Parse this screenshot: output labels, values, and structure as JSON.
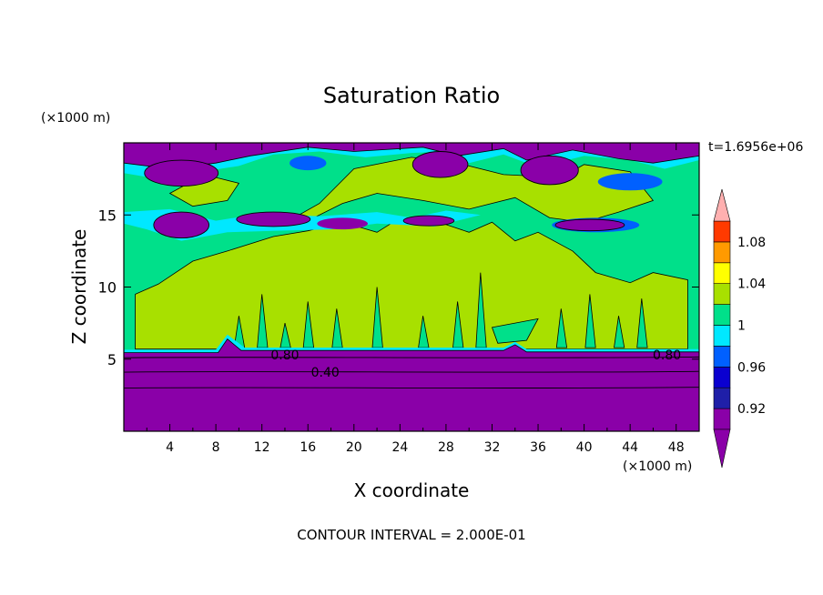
{
  "chart_data": {
    "type": "heatmap",
    "title": "Saturation Ratio",
    "xlabel": "X coordinate",
    "ylabel": "Z coordinate",
    "x_unit": "(×1000 m)",
    "y_unit": "(×1000 m)",
    "time_label": "t=1.6956e+06",
    "footer": "CONTOUR INTERVAL = 2.000E-01",
    "xlim": [
      0,
      50
    ],
    "ylim": [
      0,
      20
    ],
    "x_ticks": [
      "4",
      "8",
      "12",
      "16",
      "20",
      "24",
      "28",
      "32",
      "36",
      "40",
      "44",
      "48"
    ],
    "y_ticks": [
      "5",
      "10",
      "15"
    ],
    "contour_labels": [
      {
        "text": "0.80",
        "x": 14,
        "y": 5.3
      },
      {
        "text": "0.40",
        "x": 17.5,
        "y": 4.1
      },
      {
        "text": "0.80",
        "x": 47.2,
        "y": 5.3
      }
    ],
    "colorbar": {
      "labels": [
        "1.08",
        "1.04",
        "1",
        "0.96",
        "0.92"
      ],
      "levels": [
        0.9,
        0.92,
        0.94,
        0.96,
        0.98,
        1.0,
        1.02,
        1.04,
        1.06,
        1.08,
        1.1
      ],
      "colors": [
        "#8a00a8",
        "#1f1fa8",
        "#0a00d0",
        "#0060ff",
        "#00e8ff",
        "#00e08a",
        "#a8e000",
        "#ffff00",
        "#ff9a00",
        "#ff3a00",
        "#ffb0b0"
      ],
      "under_color": "#8a00a8",
      "over_color": "#ffb0b0"
    },
    "colors": {
      "dry": "#8a00a8",
      "near_saturation": "#00e08a",
      "saturated": "#a8e000",
      "moist_edge": "#00e8ff",
      "blue": "#0060ff"
    }
  }
}
